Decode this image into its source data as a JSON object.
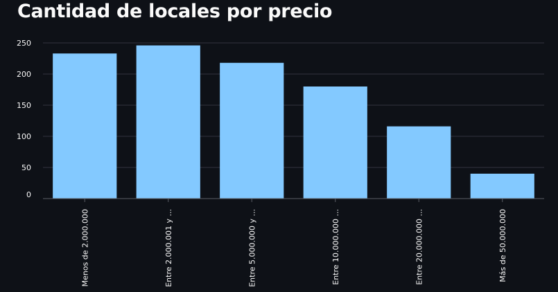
{
  "title": "Cantidad de locales por precio",
  "chart_data": {
    "type": "bar",
    "title": "Cantidad de locales por precio",
    "categories": [
      "Menos de 2.000.000",
      "Entre 2.000.001 y ...",
      "Entre 5.000.000 y ...",
      "Entre 10.000.000 ...",
      "Entre 20.000.000 ...",
      "Más de 50.000.000"
    ],
    "values": [
      233,
      246,
      218,
      180,
      116,
      40
    ],
    "xlabel": "",
    "ylabel": "",
    "ylim": [
      0,
      250
    ],
    "yticks": [
      0,
      50,
      100,
      150,
      200,
      250
    ],
    "grid": true,
    "legend": "none",
    "colors": {
      "bar": "#83c9ff",
      "background": "#0e1117",
      "grid": "#31333f",
      "text": "#fafafa"
    }
  }
}
